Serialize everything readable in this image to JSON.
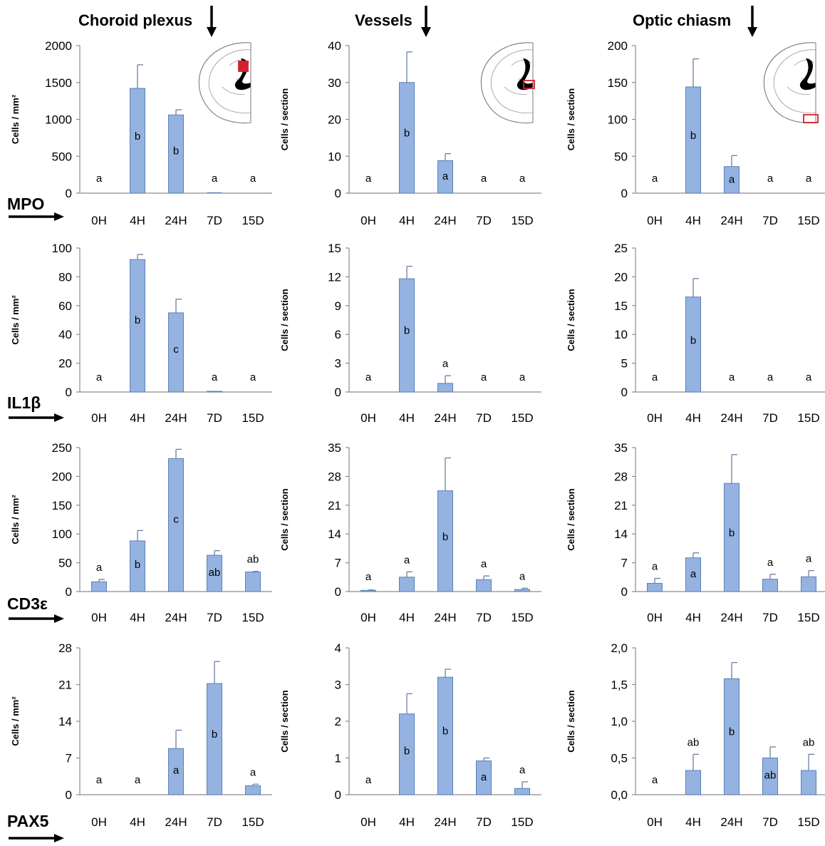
{
  "column_titles": [
    "Choroid plexus",
    "Vessels",
    "Optic chiasm"
  ],
  "row_labels": [
    "MPO",
    "IL1β",
    "CD3ε",
    "PAX5"
  ],
  "chart_data": [
    {
      "type": "bar",
      "marker": "MPO",
      "region": "Choroid plexus",
      "categories": [
        "0H",
        "4H",
        "24H",
        "7D",
        "15D"
      ],
      "values": [
        0,
        1420,
        1060,
        5,
        0
      ],
      "errors": [
        0,
        320,
        70,
        0,
        0
      ],
      "letters": [
        "a",
        "b",
        "b",
        "a",
        "a"
      ],
      "ylabel": "Cells / mm²",
      "ylim": [
        0,
        2000
      ],
      "ticks": [
        "0",
        "500",
        "1000",
        "1500",
        "2000"
      ]
    },
    {
      "type": "bar",
      "marker": "MPO",
      "region": "Vessels",
      "categories": [
        "0H",
        "4H",
        "24H",
        "7D",
        "15D"
      ],
      "values": [
        0,
        30,
        8.8,
        0,
        0
      ],
      "errors": [
        0,
        8.3,
        1.9,
        0,
        0
      ],
      "letters": [
        "a",
        "b",
        "a",
        "a",
        "a"
      ],
      "ylabel": "Cells / section",
      "ylim": [
        0,
        40
      ],
      "ticks": [
        "0",
        "10",
        "20",
        "30",
        "40"
      ]
    },
    {
      "type": "bar",
      "marker": "MPO",
      "region": "Optic chiasm",
      "categories": [
        "0H",
        "4H",
        "24H",
        "7D",
        "15D"
      ],
      "values": [
        0,
        144,
        36,
        0,
        0
      ],
      "errors": [
        0,
        38,
        15,
        0,
        0
      ],
      "letters": [
        "a",
        "b",
        "a",
        "a",
        "a"
      ],
      "ylabel": "Cells / section",
      "ylim": [
        0,
        200
      ],
      "ticks": [
        "0",
        "50",
        "100",
        "150",
        "200"
      ]
    },
    {
      "type": "bar",
      "marker": "IL1β",
      "region": "Choroid plexus",
      "categories": [
        "0H",
        "4H",
        "24H",
        "7D",
        "15D"
      ],
      "values": [
        0,
        92,
        55,
        0.5,
        0
      ],
      "errors": [
        0,
        3.5,
        9.5,
        0,
        0
      ],
      "letters": [
        "a",
        "b",
        "c",
        "a",
        "a"
      ],
      "ylabel": "Cells / mm²",
      "ylim": [
        0,
        100
      ],
      "ticks": [
        "0",
        "20",
        "40",
        "60",
        "80",
        "100"
      ]
    },
    {
      "type": "bar",
      "marker": "IL1β",
      "region": "Vessels",
      "categories": [
        "0H",
        "4H",
        "24H",
        "7D",
        "15D"
      ],
      "values": [
        0,
        11.8,
        0.9,
        0,
        0
      ],
      "errors": [
        0,
        1.3,
        0.8,
        0,
        0
      ],
      "letters": [
        "a",
        "b",
        "a",
        "a",
        "a"
      ],
      "ylabel": "Cells / section",
      "ylim": [
        0,
        15
      ],
      "ticks": [
        "0",
        "3",
        "6",
        "9",
        "12",
        "15"
      ]
    },
    {
      "type": "bar",
      "marker": "IL1β",
      "region": "Optic chiasm",
      "categories": [
        "0H",
        "4H",
        "24H",
        "7D",
        "15D"
      ],
      "values": [
        0,
        16.5,
        0,
        0,
        0
      ],
      "errors": [
        0,
        3.2,
        0,
        0,
        0
      ],
      "letters": [
        "a",
        "b",
        "a",
        "a",
        "a"
      ],
      "ylabel": "Cells / section",
      "ylim": [
        0,
        25
      ],
      "ticks": [
        "0",
        "5",
        "10",
        "15",
        "20",
        "25"
      ]
    },
    {
      "type": "bar",
      "marker": "CD3ε",
      "region": "Choroid plexus",
      "categories": [
        "0H",
        "4H",
        "24H",
        "7D",
        "15D"
      ],
      "values": [
        17,
        88,
        231,
        63,
        34
      ],
      "errors": [
        4,
        18,
        16,
        8,
        1
      ],
      "letters": [
        "a",
        "b",
        "c",
        "ab",
        "ab"
      ],
      "ylabel": "Cells / mm²",
      "ylim": [
        0,
        250
      ],
      "ticks": [
        "0",
        "50",
        "100",
        "150",
        "200",
        "250"
      ]
    },
    {
      "type": "bar",
      "marker": "CD3ε",
      "region": "Vessels",
      "categories": [
        "0H",
        "4H",
        "24H",
        "7D",
        "15D"
      ],
      "values": [
        0.3,
        3.5,
        24.5,
        2.9,
        0.5
      ],
      "errors": [
        0.1,
        1.3,
        8,
        0.9,
        0.3
      ],
      "letters": [
        "a",
        "a",
        "b",
        "a",
        "a"
      ],
      "ylabel": "Cells / section",
      "ylim": [
        0,
        35
      ],
      "ticks": [
        "0",
        "7",
        "14",
        "21",
        "28",
        "35"
      ]
    },
    {
      "type": "bar",
      "marker": "CD3ε",
      "region": "Optic chiasm",
      "categories": [
        "0H",
        "4H",
        "24H",
        "7D",
        "15D"
      ],
      "values": [
        2,
        8.2,
        26.3,
        3,
        3.6
      ],
      "errors": [
        1.2,
        1.2,
        7,
        1.2,
        1.5
      ],
      "letters": [
        "a",
        "a",
        "b",
        "a",
        "a"
      ],
      "ylabel": "Cells / section",
      "ylim": [
        0,
        35
      ],
      "ticks": [
        "0",
        "7",
        "14",
        "21",
        "28",
        "35"
      ]
    },
    {
      "type": "bar",
      "marker": "PAX5",
      "region": "Choroid plexus",
      "categories": [
        "0H",
        "4H",
        "24H",
        "7D",
        "15D"
      ],
      "values": [
        0,
        0,
        8.8,
        21.2,
        1.7
      ],
      "errors": [
        0,
        0,
        3.5,
        4.2,
        0.3
      ],
      "letters": [
        "a",
        "a",
        "a",
        "b",
        "a"
      ],
      "ylabel": "Cells / mm²",
      "ylim": [
        0,
        28
      ],
      "ticks": [
        "0",
        "7",
        "14",
        "21",
        "28"
      ]
    },
    {
      "type": "bar",
      "marker": "PAX5",
      "region": "Vessels",
      "categories": [
        "0H",
        "4H",
        "24H",
        "7D",
        "15D"
      ],
      "values": [
        0,
        2.2,
        3.2,
        0.92,
        0.17
      ],
      "errors": [
        0,
        0.55,
        0.22,
        0.08,
        0.18
      ],
      "letters": [
        "a",
        "b",
        "b",
        "a",
        "a"
      ],
      "ylabel": "Cells / section",
      "ylim": [
        0,
        4
      ],
      "ticks": [
        "0",
        "1",
        "2",
        "3",
        "4"
      ]
    },
    {
      "type": "bar",
      "marker": "PAX5",
      "region": "Optic chiasm",
      "categories": [
        "0H",
        "4H",
        "24H",
        "7D",
        "15D"
      ],
      "values": [
        0,
        0.33,
        1.58,
        0.5,
        0.33
      ],
      "errors": [
        0,
        0.22,
        0.22,
        0.15,
        0.22
      ],
      "letters": [
        "a",
        "ab",
        "b",
        "ab",
        "ab"
      ],
      "ylabel": "Cells / section",
      "ylim": [
        0,
        2
      ],
      "ticks": [
        "0,0",
        "0,5",
        "1,0",
        "1,5",
        "2,0"
      ]
    }
  ]
}
